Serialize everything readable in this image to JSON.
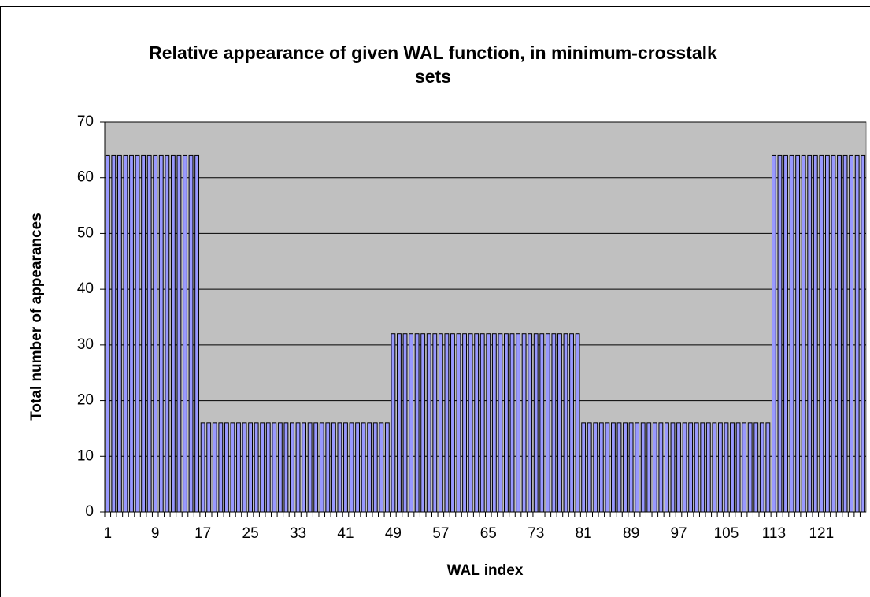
{
  "chart_data": {
    "type": "bar",
    "title": "Relative appearance of given WAL function, in minimum-crosstalk sets",
    "x_label": "WAL index",
    "y_label": "Total number of appearances",
    "categories": [
      "1",
      null,
      null,
      null,
      null,
      null,
      null,
      null,
      "9",
      null,
      null,
      null,
      null,
      null,
      null,
      null,
      "17",
      null,
      null,
      null,
      null,
      null,
      null,
      null,
      "25",
      null,
      null,
      null,
      null,
      null,
      null,
      null,
      "33",
      null,
      null,
      null,
      null,
      null,
      null,
      null,
      "41",
      null,
      null,
      null,
      null,
      null,
      null,
      null,
      "49",
      null,
      null,
      null,
      null,
      null,
      null,
      null,
      "57",
      null,
      null,
      null,
      null,
      null,
      null,
      null,
      "65",
      null,
      null,
      null,
      null,
      null,
      null,
      null,
      "73",
      null,
      null,
      null,
      null,
      null,
      null,
      null,
      "81",
      null,
      null,
      null,
      null,
      null,
      null,
      null,
      "89",
      null,
      null,
      null,
      null,
      null,
      null,
      null,
      "97",
      null,
      null,
      null,
      null,
      null,
      null,
      null,
      "105",
      null,
      null,
      null,
      null,
      null,
      null,
      null,
      "113",
      null,
      null,
      null,
      null,
      null,
      null,
      null,
      "121",
      null,
      null,
      null,
      null,
      null,
      null,
      null
    ],
    "values": [
      64,
      64,
      64,
      64,
      64,
      64,
      64,
      64,
      64,
      64,
      64,
      64,
      64,
      64,
      64,
      64,
      16,
      16,
      16,
      16,
      16,
      16,
      16,
      16,
      16,
      16,
      16,
      16,
      16,
      16,
      16,
      16,
      16,
      16,
      16,
      16,
      16,
      16,
      16,
      16,
      16,
      16,
      16,
      16,
      16,
      16,
      16,
      16,
      32,
      32,
      32,
      32,
      32,
      32,
      32,
      32,
      32,
      32,
      32,
      32,
      32,
      32,
      32,
      32,
      32,
      32,
      32,
      32,
      32,
      32,
      32,
      32,
      32,
      32,
      32,
      32,
      32,
      32,
      32,
      32,
      16,
      16,
      16,
      16,
      16,
      16,
      16,
      16,
      16,
      16,
      16,
      16,
      16,
      16,
      16,
      16,
      16,
      16,
      16,
      16,
      16,
      16,
      16,
      16,
      16,
      16,
      16,
      16,
      16,
      16,
      16,
      16,
      64,
      64,
      64,
      64,
      64,
      64,
      64,
      64,
      64,
      64,
      64,
      64,
      64,
      64,
      64,
      64
    ],
    "color": "#9999ff",
    "plot_background": "#c0c0c0",
    "ylim": [
      0,
      70
    ],
    "yticks": [
      0,
      10,
      20,
      30,
      40,
      50,
      60,
      70
    ],
    "grid": true
  }
}
